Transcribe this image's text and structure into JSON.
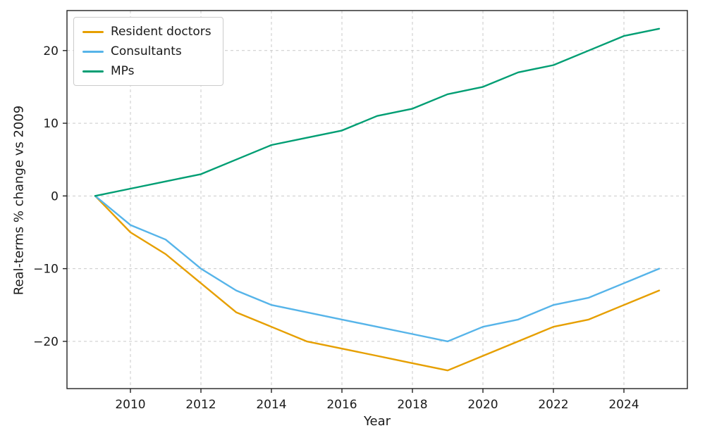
{
  "chart_data": {
    "type": "line",
    "title": "",
    "xlabel": "Year",
    "ylabel": "Real-terms % change vs 2009",
    "x": [
      2009,
      2010,
      2011,
      2012,
      2013,
      2014,
      2015,
      2016,
      2017,
      2018,
      2019,
      2020,
      2021,
      2022,
      2023,
      2024,
      2025
    ],
    "xlim": [
      2008.2,
      2025.8
    ],
    "ylim": [
      -26.5,
      25.5
    ],
    "xticks": [
      2010,
      2012,
      2014,
      2016,
      2018,
      2020,
      2022,
      2024
    ],
    "yticks": [
      -20,
      -10,
      0,
      10,
      20
    ],
    "grid": true,
    "legend_position": "upper-left",
    "series": [
      {
        "name": "Resident doctors",
        "color": "#E69F00",
        "values": [
          0,
          -5,
          -8,
          -12,
          -16,
          -18,
          -20,
          -21,
          -22,
          -23,
          -24,
          -22,
          -20,
          -18,
          -17,
          -15,
          -13
        ]
      },
      {
        "name": "Consultants",
        "color": "#56B4E9",
        "values": [
          0,
          -4,
          -6,
          -10,
          -13,
          -15,
          -16,
          -17,
          -18,
          -19,
          -20,
          -18,
          -17,
          -15,
          -14,
          -12,
          -10
        ]
      },
      {
        "name": "MPs",
        "color": "#009E73",
        "values": [
          0,
          1,
          2,
          3,
          5,
          7,
          8,
          9,
          11,
          12,
          14,
          15,
          17,
          18,
          20,
          22,
          23
        ]
      }
    ]
  }
}
